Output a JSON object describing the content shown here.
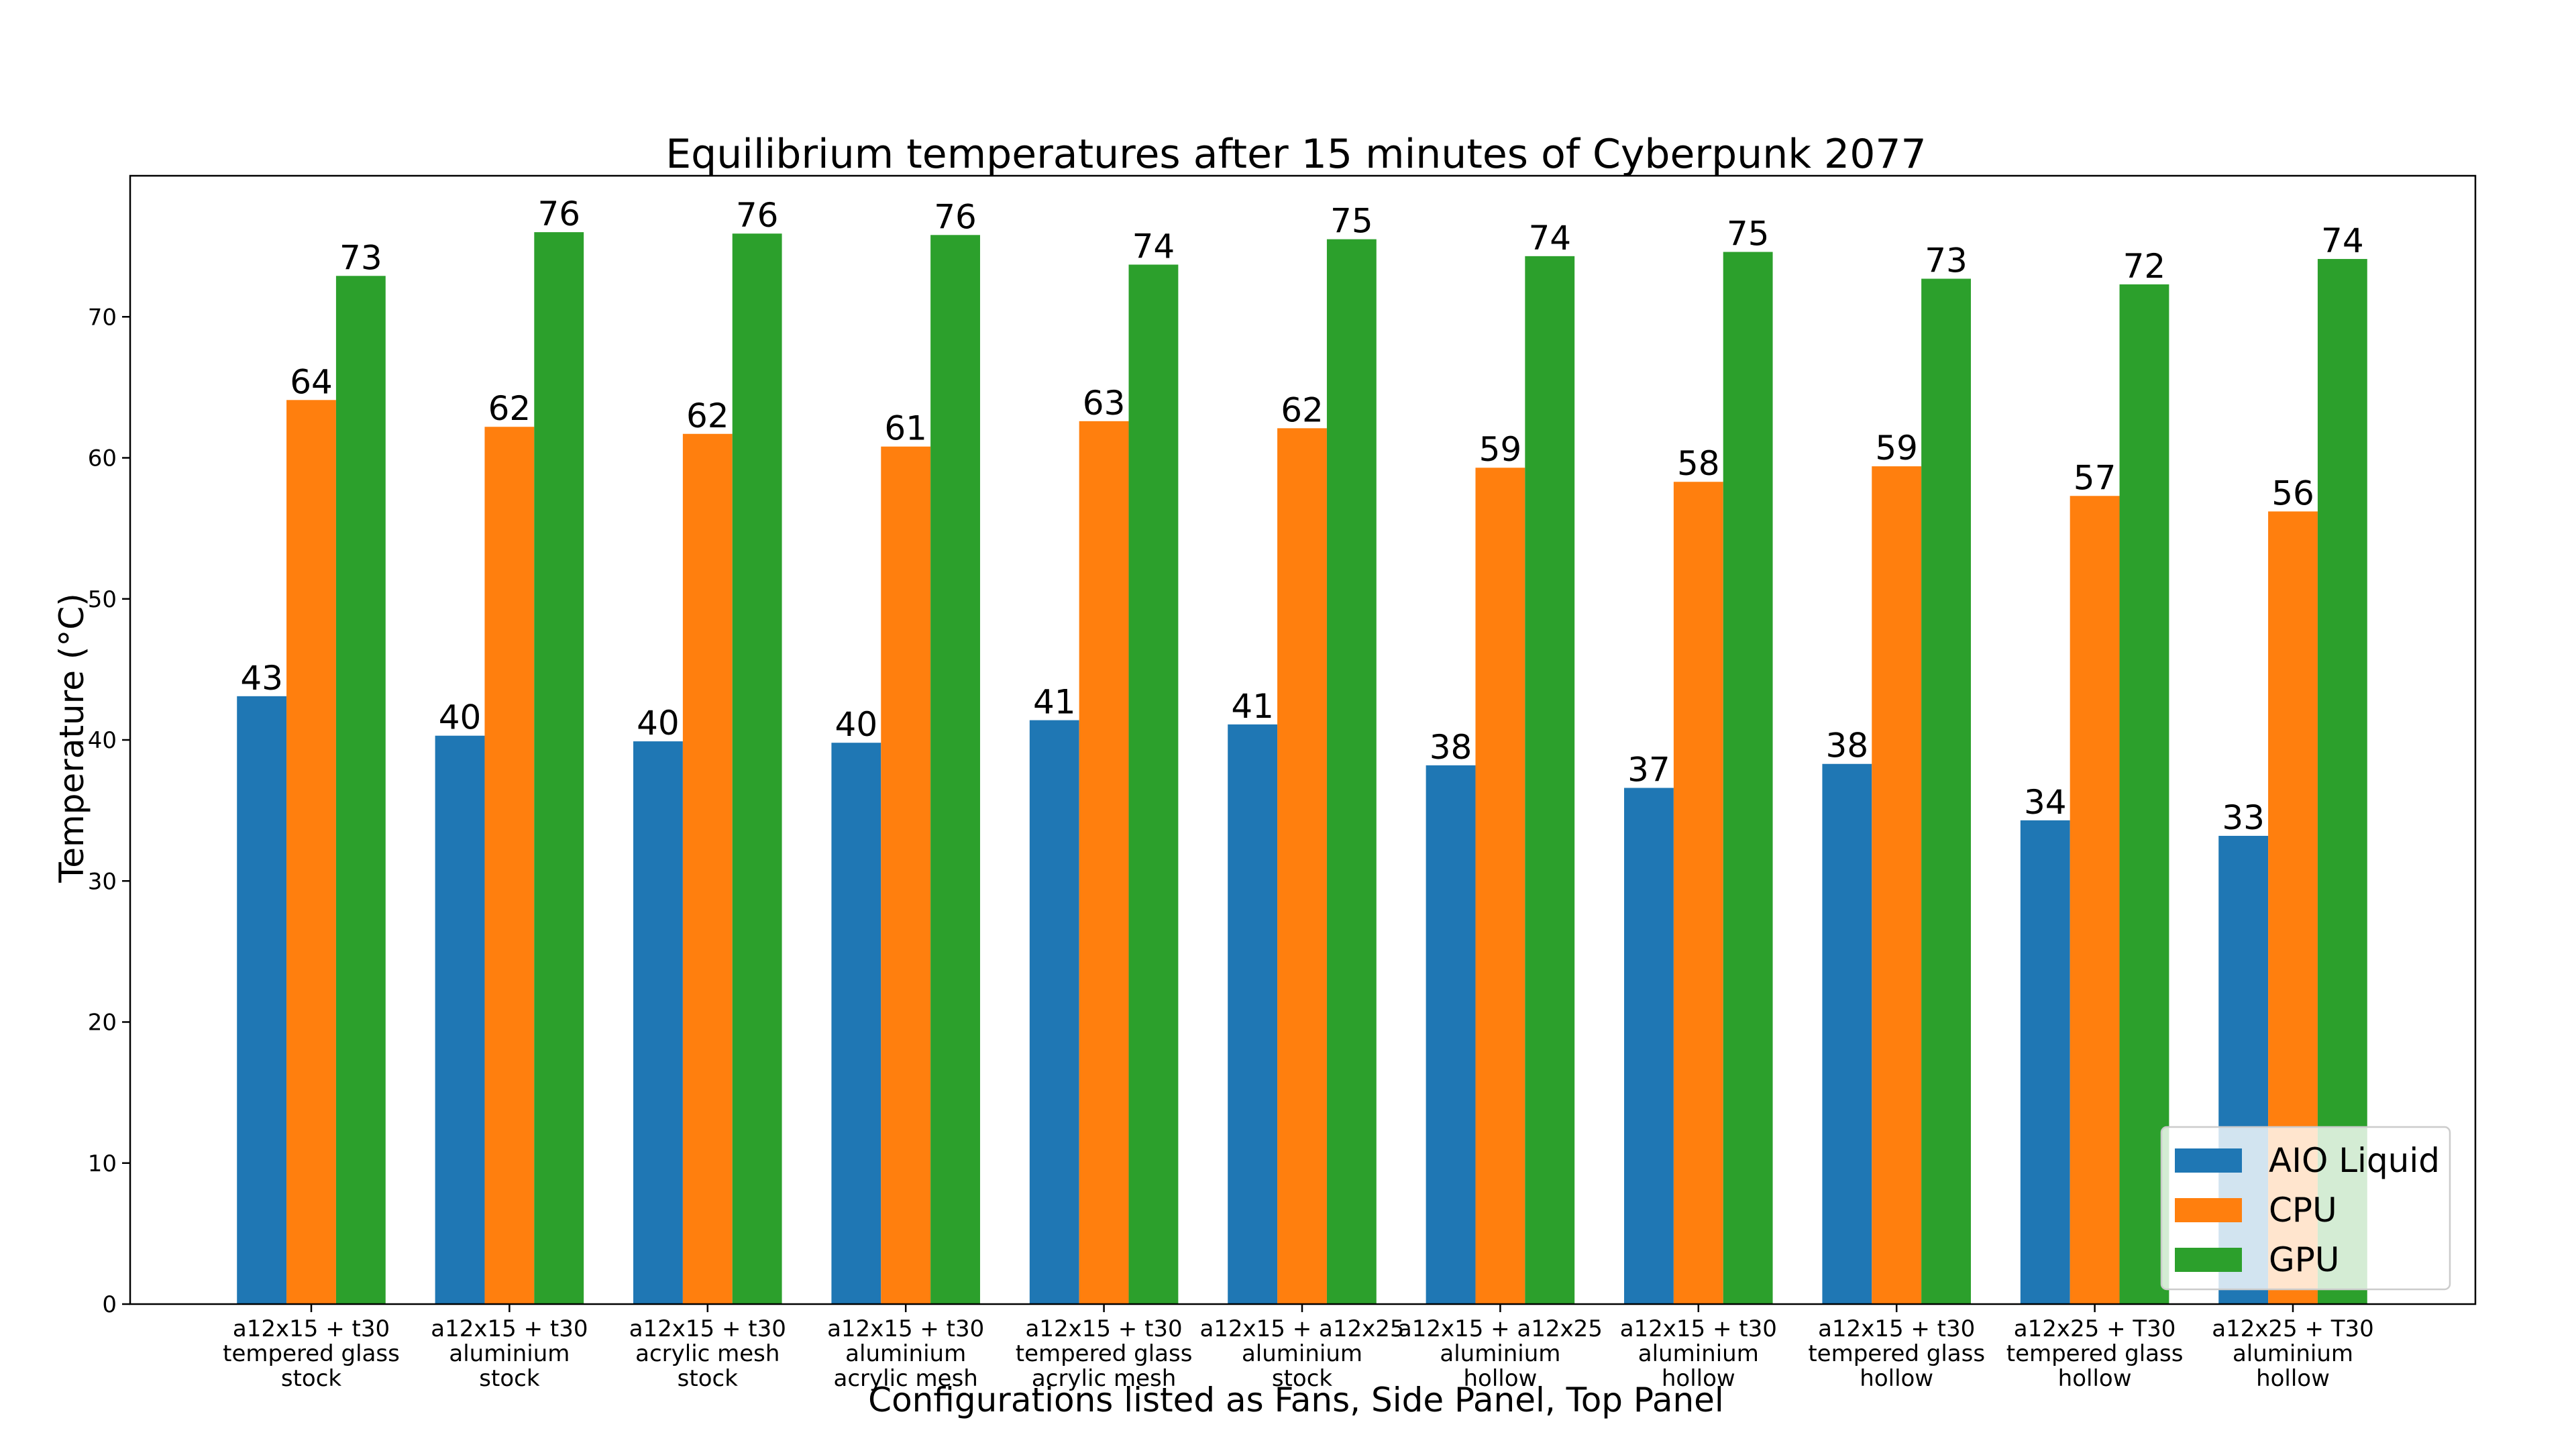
{
  "chart_data": {
    "type": "bar",
    "title": "Equilibrium temperatures after 15 minutes of Cyberpunk 2077",
    "xlabel": "Configurations listed as Fans, Side Panel, Top Panel",
    "ylabel": "Temperature (°C)",
    "ylim": [
      0,
      80
    ],
    "yticks": [
      0,
      10,
      20,
      30,
      40,
      50,
      60,
      70
    ],
    "legend_position": "lower-right",
    "grid": false,
    "categories": [
      [
        "a12x15 + t30",
        "tempered glass",
        "stock"
      ],
      [
        "a12x15 + t30",
        "aluminium",
        "stock"
      ],
      [
        "a12x15 + t30",
        "acrylic mesh",
        "stock"
      ],
      [
        "a12x15 + t30",
        "aluminium",
        "acrylic mesh"
      ],
      [
        "a12x15 + t30",
        "tempered glass",
        "acrylic mesh"
      ],
      [
        "a12x15 + a12x25",
        "aluminium",
        "stock"
      ],
      [
        "a12x15 + a12x25",
        "aluminium",
        "hollow"
      ],
      [
        "a12x15 + t30",
        "aluminium",
        "hollow"
      ],
      [
        "a12x15 + t30",
        "tempered glass",
        "hollow"
      ],
      [
        "a12x25 + T30",
        "tempered glass",
        "hollow"
      ],
      [
        "a12x25 + T30",
        "aluminium",
        "hollow"
      ]
    ],
    "series": [
      {
        "name": "AIO Liquid",
        "color": "#1f77b4",
        "values": [
          43.1,
          40.3,
          39.9,
          39.8,
          41.4,
          41.1,
          38.2,
          36.6,
          38.3,
          34.3,
          33.2
        ],
        "labels": [
          "43",
          "40",
          "40",
          "40",
          "41",
          "41",
          "38",
          "37",
          "38",
          "34",
          "33"
        ]
      },
      {
        "name": "CPU",
        "color": "#ff7f0e",
        "values": [
          64.1,
          62.2,
          61.7,
          60.8,
          62.6,
          62.1,
          59.3,
          58.3,
          59.4,
          57.3,
          56.2
        ],
        "labels": [
          "64",
          "62",
          "62",
          "61",
          "63",
          "62",
          "59",
          "58",
          "59",
          "57",
          "56"
        ]
      },
      {
        "name": "GPU",
        "color": "#2ca02c",
        "values": [
          72.9,
          76.0,
          75.9,
          75.8,
          73.7,
          75.5,
          74.3,
          74.6,
          72.7,
          72.3,
          74.1
        ],
        "labels": [
          "73",
          "76",
          "76",
          "76",
          "74",
          "75",
          "74",
          "75",
          "73",
          "72",
          "74"
        ]
      }
    ]
  }
}
